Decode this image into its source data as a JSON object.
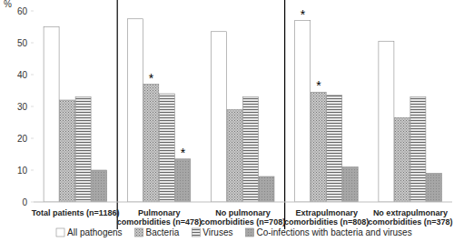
{
  "chart_data": {
    "type": "bar",
    "y_label": "%",
    "categories": [
      "Total patients (n=1186)",
      "Pulmonary comorbidities (n=478)",
      "No pulmonary comorbidities (n=708)",
      "Extrapulmonary comorbidities (n=808)",
      "No extrapulmonary comorbidities (n=378)"
    ],
    "series": [
      {
        "name": "All pathogens",
        "color": "#ffffff",
        "values": [
          55,
          57.5,
          53.5,
          57,
          50.5
        ]
      },
      {
        "name": "Bacteria",
        "color": "#c9c9c9",
        "values": [
          32,
          37,
          29,
          34.5,
          26.5
        ]
      },
      {
        "name": "Viruses",
        "color": "#e6e6e6",
        "values": [
          33,
          34,
          33,
          33.5,
          33
        ]
      },
      {
        "name": "Co-infections with bacteria and viruses",
        "color": "#a6a6a6",
        "values": [
          10,
          13.5,
          8,
          11,
          9
        ]
      }
    ],
    "annotations": [
      {
        "text": "*",
        "series": 1,
        "category": 1
      },
      {
        "text": "*",
        "series": 3,
        "category": 1
      },
      {
        "text": "*",
        "series": 0,
        "category": 3
      },
      {
        "text": "*",
        "series": 1,
        "category": 3
      }
    ],
    "ylim": [
      0,
      60
    ],
    "yticks": [
      0,
      10,
      20,
      30,
      40,
      50,
      60
    ],
    "grid": false,
    "legend": "bottom"
  }
}
